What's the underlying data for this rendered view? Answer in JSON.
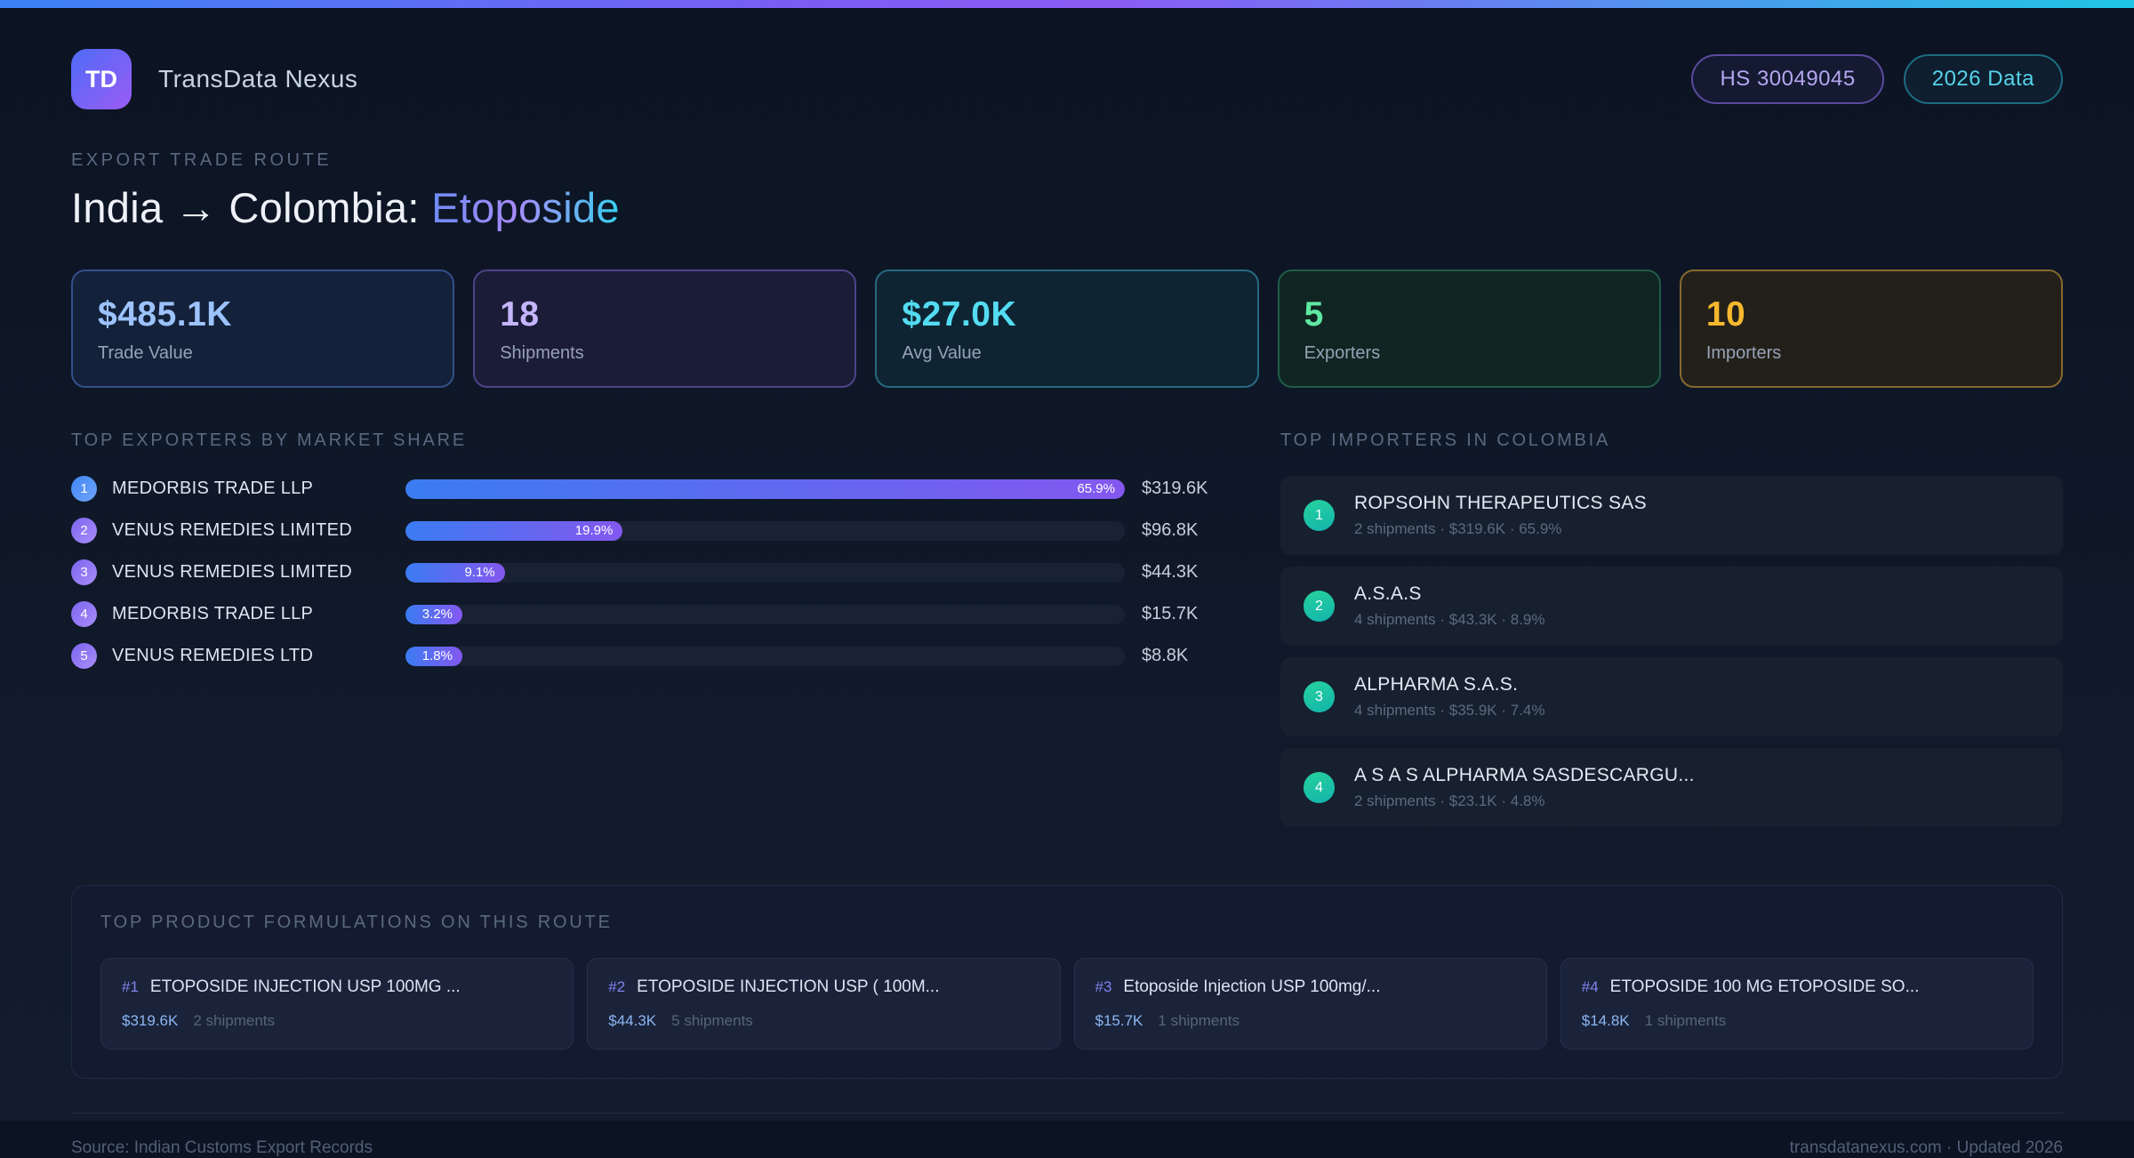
{
  "brand": {
    "initials": "TD",
    "name": "TransData Nexus"
  },
  "badges": {
    "hs_code": "HS 30049045",
    "year": "2026 Data"
  },
  "header": {
    "eyebrow": "EXPORT TRADE ROUTE",
    "title_prefix": "India → Colombia: ",
    "title_highlight": "Etoposide"
  },
  "stats": [
    {
      "value": "$485.1K",
      "label": "Trade Value"
    },
    {
      "value": "18",
      "label": "Shipments"
    },
    {
      "value": "$27.0K",
      "label": "Avg Value"
    },
    {
      "value": "5",
      "label": "Exporters"
    },
    {
      "value": "10",
      "label": "Importers"
    }
  ],
  "exporters": {
    "heading": "TOP EXPORTERS BY MARKET SHARE",
    "rows": [
      {
        "rank": "1",
        "name": "MEDORBIS TRADE LLP",
        "share_pct": 65.9,
        "share_label": "65.9%",
        "value": "$319.6K"
      },
      {
        "rank": "2",
        "name": "VENUS REMEDIES LIMITED",
        "share_pct": 19.9,
        "share_label": "19.9%",
        "value": "$96.8K"
      },
      {
        "rank": "3",
        "name": "VENUS REMEDIES LIMITED",
        "share_pct": 9.1,
        "share_label": "9.1%",
        "value": "$44.3K"
      },
      {
        "rank": "4",
        "name": "MEDORBIS TRADE LLP",
        "share_pct": 3.2,
        "share_label": "3.2%",
        "value": "$15.7K"
      },
      {
        "rank": "5",
        "name": "VENUS REMEDIES LTD",
        "share_pct": 1.8,
        "share_label": "1.8%",
        "value": "$8.8K"
      }
    ]
  },
  "importers": {
    "heading": "TOP IMPORTERS IN COLOMBIA",
    "rows": [
      {
        "rank": "1",
        "name": "ROPSOHN THERAPEUTICS SAS",
        "meta": "2 shipments · $319.6K · 65.9%"
      },
      {
        "rank": "2",
        "name": "A.S.A.S",
        "meta": "4 shipments · $43.3K · 8.9%"
      },
      {
        "rank": "3",
        "name": "ALPHARMA S.A.S.",
        "meta": "4 shipments · $35.9K · 7.4%"
      },
      {
        "rank": "4",
        "name": "A S A S ALPHARMA SASDESCARGU...",
        "meta": "2 shipments · $23.1K · 4.8%"
      }
    ]
  },
  "formulations": {
    "heading": "TOP PRODUCT FORMULATIONS ON THIS ROUTE",
    "cards": [
      {
        "rank": "#1",
        "name": "ETOPOSIDE INJECTION USP 100MG ...",
        "value": "$319.6K",
        "shipments": "2 shipments"
      },
      {
        "rank": "#2",
        "name": "ETOPOSIDE INJECTION USP ( 100M...",
        "value": "$44.3K",
        "shipments": "5 shipments"
      },
      {
        "rank": "#3",
        "name": "Etoposide Injection USP 100mg/...",
        "value": "$15.7K",
        "shipments": "1 shipments"
      },
      {
        "rank": "#4",
        "name": "ETOPOSIDE 100 MG ETOPOSIDE SO...",
        "value": "$14.8K",
        "shipments": "1 shipments"
      }
    ]
  },
  "footer": {
    "source": "Source: Indian Customs Export Records",
    "site": "transdatanexus.com · Updated 2026"
  },
  "colors": {
    "accent_blue": "#3b82f6",
    "accent_purple": "#8b5cf6",
    "accent_cyan": "#22d3ee",
    "accent_green": "#34d399",
    "accent_amber": "#fbbf24"
  }
}
